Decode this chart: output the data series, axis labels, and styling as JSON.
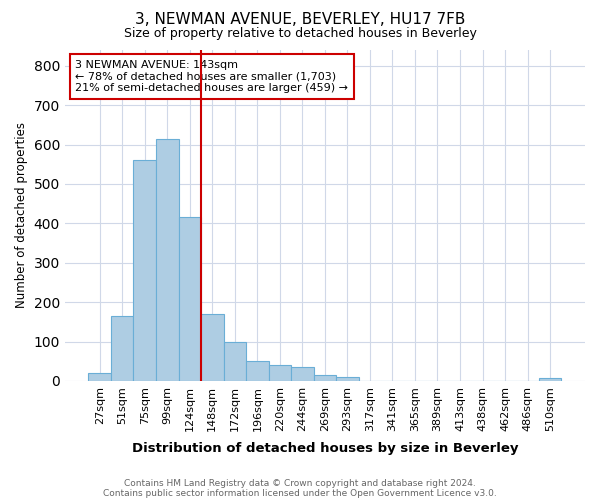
{
  "title1": "3, NEWMAN AVENUE, BEVERLEY, HU17 7FB",
  "title2": "Size of property relative to detached houses in Beverley",
  "xlabel": "Distribution of detached houses by size in Beverley",
  "ylabel": "Number of detached properties",
  "categories": [
    "27sqm",
    "51sqm",
    "75sqm",
    "99sqm",
    "124sqm",
    "148sqm",
    "172sqm",
    "196sqm",
    "220sqm",
    "244sqm",
    "269sqm",
    "293sqm",
    "317sqm",
    "341sqm",
    "365sqm",
    "389sqm",
    "413sqm",
    "438sqm",
    "462sqm",
    "486sqm",
    "510sqm"
  ],
  "values": [
    20,
    165,
    560,
    615,
    415,
    170,
    100,
    50,
    40,
    35,
    15,
    10,
    0,
    0,
    0,
    0,
    0,
    0,
    0,
    0,
    8
  ],
  "bar_color": "#aecde3",
  "bar_edge_color": "#6aaed6",
  "vline_x": 4.5,
  "vline_color": "#cc0000",
  "ylim": [
    0,
    840
  ],
  "yticks": [
    0,
    100,
    200,
    300,
    400,
    500,
    600,
    700,
    800
  ],
  "annotation_text": "3 NEWMAN AVENUE: 143sqm\n← 78% of detached houses are smaller (1,703)\n21% of semi-detached houses are larger (459) →",
  "annotation_box_color": "#ffffff",
  "annotation_box_edge_color": "#cc0000",
  "footer1": "Contains HM Land Registry data © Crown copyright and database right 2024.",
  "footer2": "Contains public sector information licensed under the Open Government Licence v3.0.",
  "background_color": "#ffffff",
  "plot_bg_color": "#ffffff",
  "grid_color": "#d0d8e8"
}
